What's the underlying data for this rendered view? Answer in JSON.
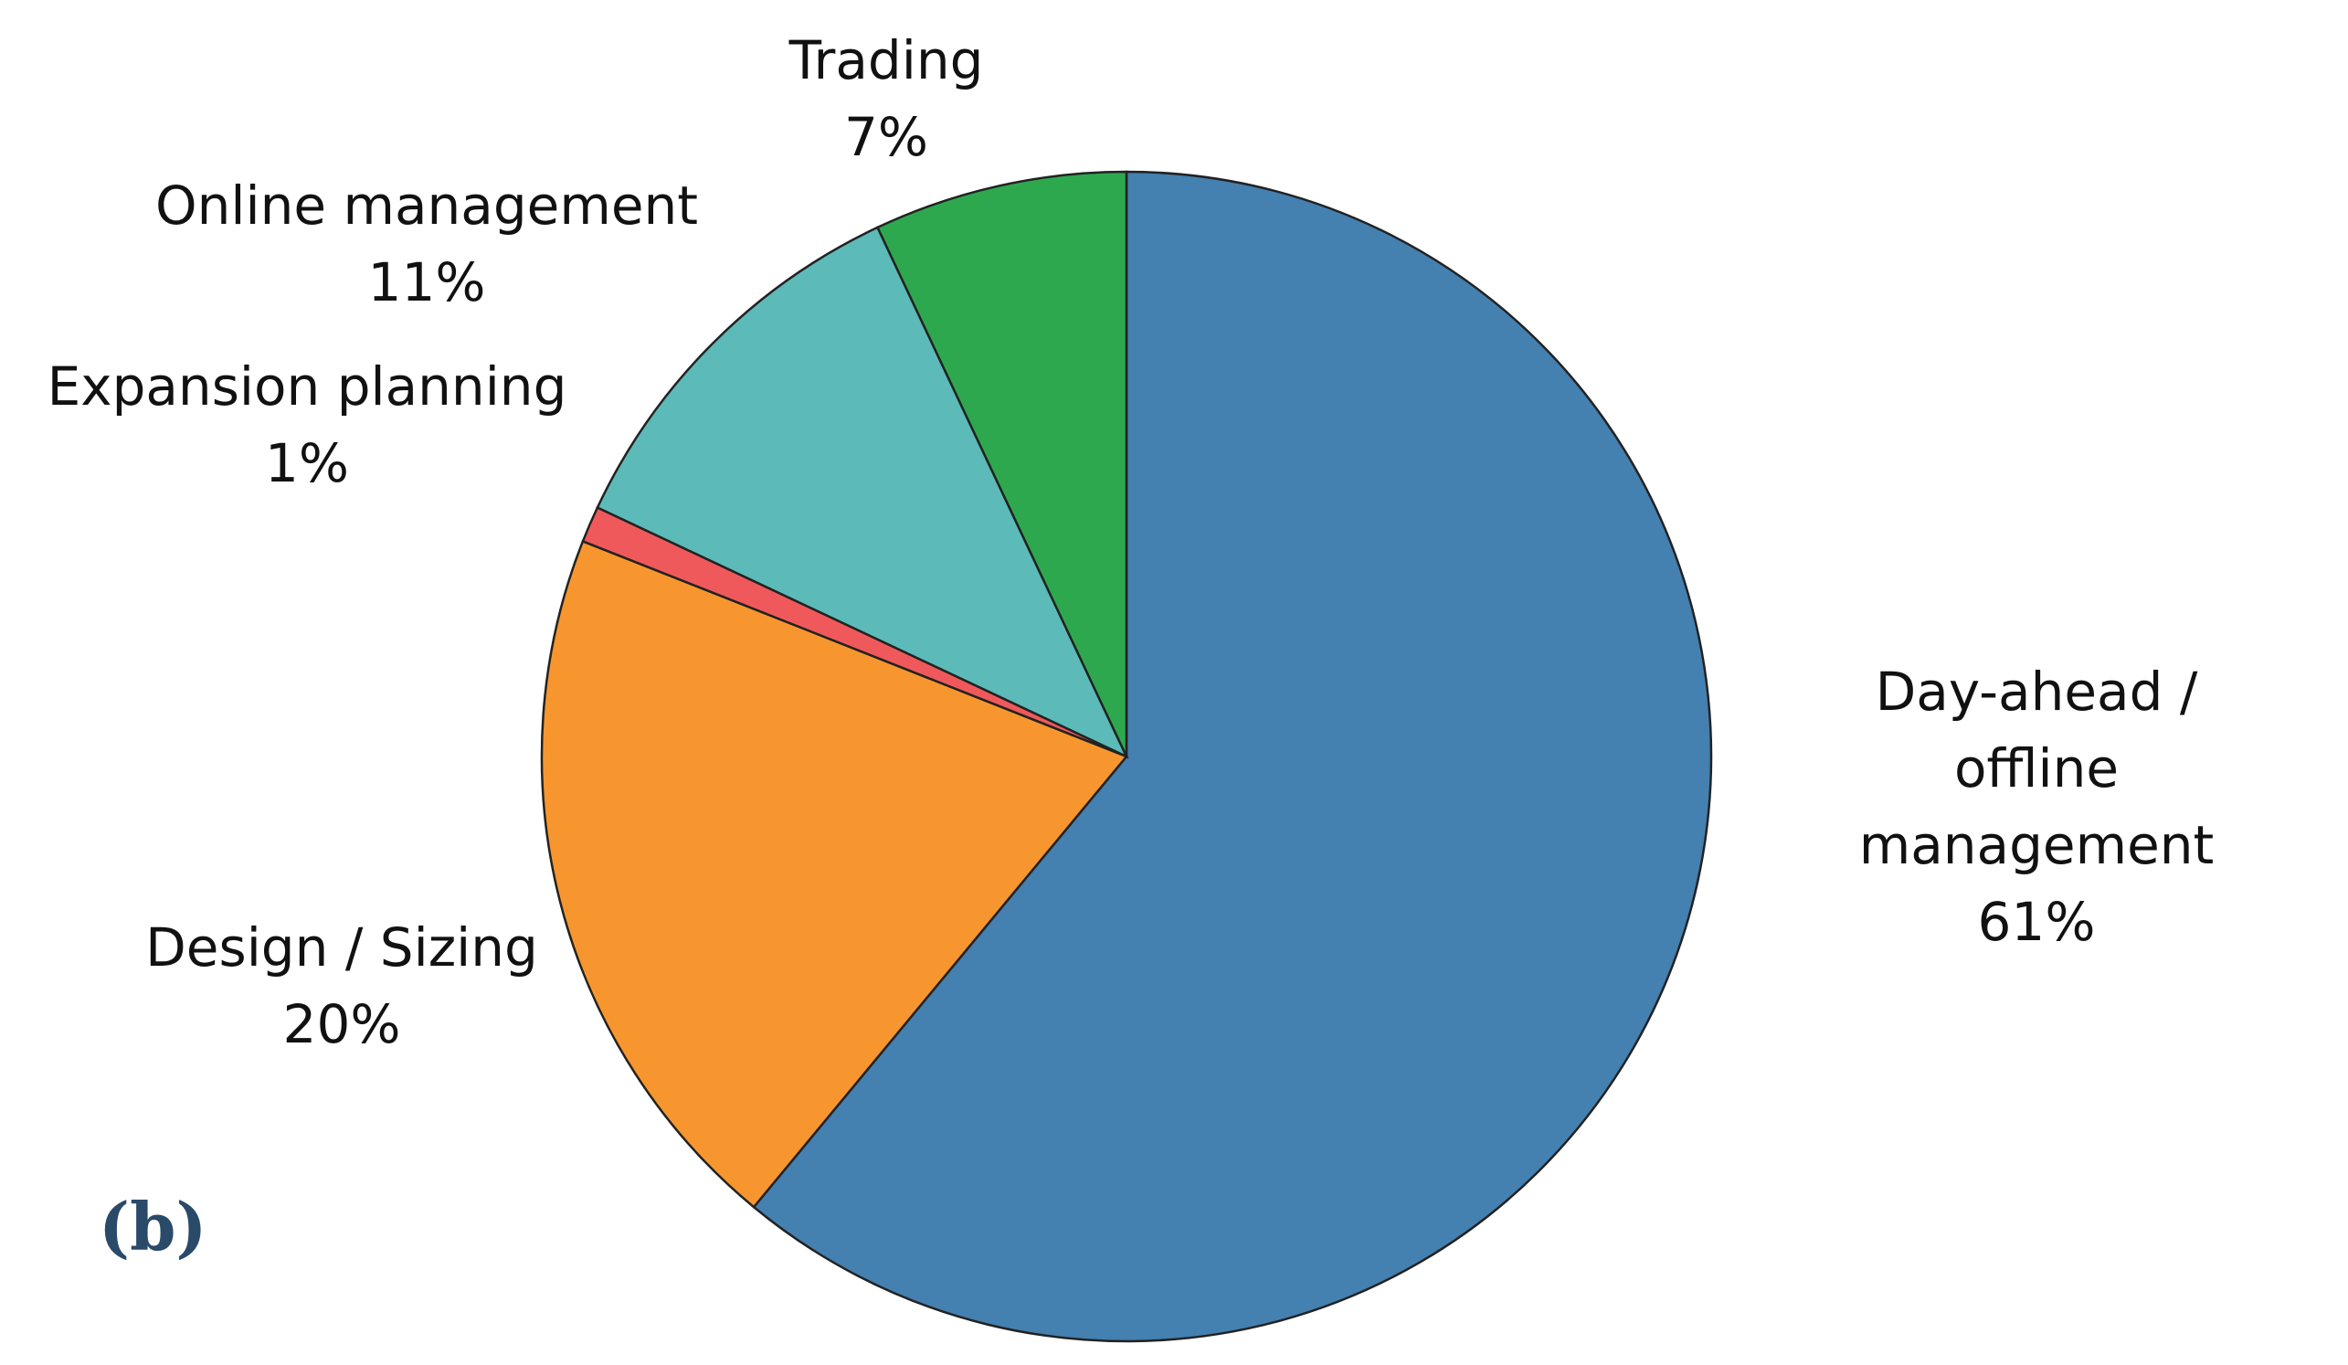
{
  "chart_data": {
    "type": "pie",
    "categories": [
      "Day-ahead /\noffline management",
      "Design / Sizing",
      "Expansion planning",
      "Online management",
      "Trading"
    ],
    "values": [
      61,
      20,
      1,
      11,
      7
    ],
    "value_labels": [
      "61%",
      "20%",
      "1%",
      "11%",
      "7%"
    ],
    "colors": [
      "#4480b0",
      "#f7962f",
      "#f0595b",
      "#5cbab8",
      "#2ea84f"
    ],
    "panel_label": "(b)"
  }
}
